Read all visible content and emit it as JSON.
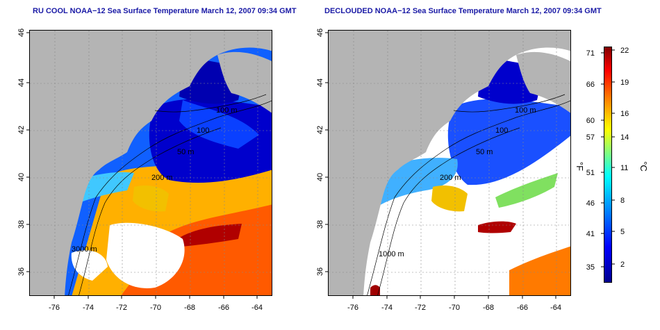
{
  "titles": {
    "left": "RU COOL NOAA−12 Sea Surface Temperature March 12, 2007 09:34 GMT",
    "right": "DECLOUDED NOAA−12 Sea Surface Temperature March 12, 2007 09:34 GMT"
  },
  "axes": {
    "lat_ticks": [
      "46",
      "44",
      "42",
      "40",
      "38",
      "36"
    ],
    "lon_ticks": [
      "-76",
      "-74",
      "-72",
      "-70",
      "-68",
      "-66",
      "-64"
    ]
  },
  "contours": [
    "100 m",
    "100",
    "50 m",
    "200 m",
    "200 m",
    "3000 m",
    "1000 m"
  ],
  "colorbar": {
    "unit_f": "°F",
    "unit_c": "°C",
    "f_ticks": [
      "71",
      "66",
      "60",
      "57",
      "51",
      "46",
      "41",
      "35"
    ],
    "c_ticks": [
      "22",
      "19",
      "16",
      "14",
      "11",
      "8",
      "5",
      "2"
    ]
  },
  "colors": {
    "land": "#b4b4b4",
    "cold": "#0000cc",
    "warm": "#ff4000",
    "title": "#1a1aa6"
  }
}
